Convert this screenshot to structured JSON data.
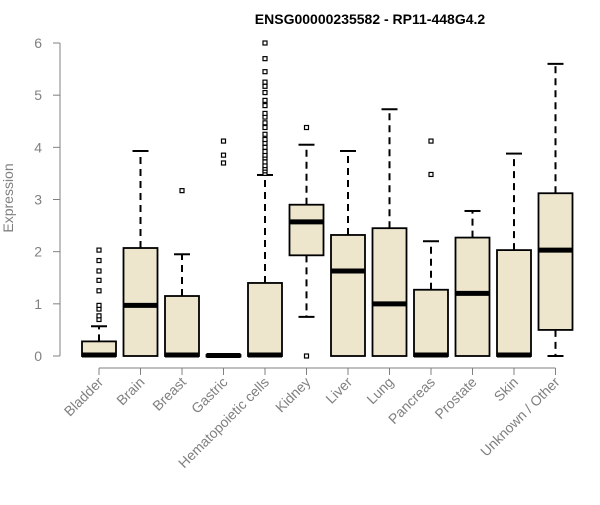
{
  "chart_data": {
    "type": "boxplot",
    "title": "ENSG00000235582 - RP11-448G4.2",
    "xlabel": "",
    "ylabel": "Expression",
    "ylim": [
      0,
      6
    ],
    "yticks": [
      "0",
      "1",
      "2",
      "3",
      "4",
      "5",
      "6"
    ],
    "grid": false,
    "legend": "none",
    "categories": [
      "Bladder",
      "Brain",
      "Breast",
      "Gastric",
      "Hematopoietic cells",
      "Kidney",
      "Liver",
      "Lung",
      "Pancreas",
      "Prostate",
      "Skin",
      "Unknown / Other"
    ],
    "boxes": [
      {
        "category": "Bladder",
        "min": 0,
        "q1": 0,
        "median": 0.02,
        "q3": 0.28,
        "max": 0.57,
        "outliers": [
          0.7,
          0.77,
          0.9,
          0.97,
          1.25,
          1.45,
          1.63,
          1.83,
          2.03
        ]
      },
      {
        "category": "Brain",
        "min": 0,
        "q1": 0,
        "median": 0.97,
        "q3": 2.07,
        "max": 3.93,
        "outliers": []
      },
      {
        "category": "Breast",
        "min": 0,
        "q1": 0,
        "median": 0.02,
        "q3": 1.15,
        "max": 1.95,
        "outliers": [
          3.17
        ]
      },
      {
        "category": "Gastric",
        "min": 0,
        "q1": 0,
        "median": 0.01,
        "q3": 0.02,
        "max": 0.02,
        "outliers": [
          3.7,
          3.85,
          4.12
        ]
      },
      {
        "category": "Hematopoietic cells",
        "min": 0,
        "q1": 0,
        "median": 0.02,
        "q3": 1.4,
        "max": 3.47,
        "outliers": [
          3.5,
          3.55,
          3.6,
          3.65,
          3.72,
          3.8,
          3.85,
          3.92,
          4.0,
          4.08,
          4.15,
          4.25,
          4.38,
          4.47,
          4.58,
          4.65,
          4.8,
          4.9,
          5.05,
          5.17,
          5.25,
          5.45,
          5.7,
          6.0
        ]
      },
      {
        "category": "Kidney",
        "min": 0.75,
        "q1": 1.93,
        "median": 2.57,
        "q3": 2.9,
        "max": 4.05,
        "outliers": [
          0.0,
          4.38
        ]
      },
      {
        "category": "Liver",
        "min": 0,
        "q1": 0,
        "median": 1.63,
        "q3": 2.32,
        "max": 3.93,
        "outliers": []
      },
      {
        "category": "Lung",
        "min": 0,
        "q1": 0,
        "median": 1.0,
        "q3": 2.45,
        "max": 4.73,
        "outliers": []
      },
      {
        "category": "Pancreas",
        "min": 0,
        "q1": 0,
        "median": 0.02,
        "q3": 1.27,
        "max": 2.2,
        "outliers": [
          3.48,
          4.12
        ]
      },
      {
        "category": "Prostate",
        "min": 0,
        "q1": 0,
        "median": 1.2,
        "q3": 2.27,
        "max": 2.78,
        "outliers": []
      },
      {
        "category": "Skin",
        "min": 0,
        "q1": 0,
        "median": 0.02,
        "q3": 2.03,
        "max": 3.88,
        "outliers": []
      },
      {
        "category": "Unknown / Other",
        "min": 0,
        "q1": 0.5,
        "median": 2.03,
        "q3": 3.12,
        "max": 5.6,
        "outliers": []
      }
    ],
    "colors": {
      "box_fill": "#ede6cc",
      "box_stroke": "#000000",
      "axis": "#808080",
      "axis_text": "#808080",
      "title": "#000000"
    }
  }
}
